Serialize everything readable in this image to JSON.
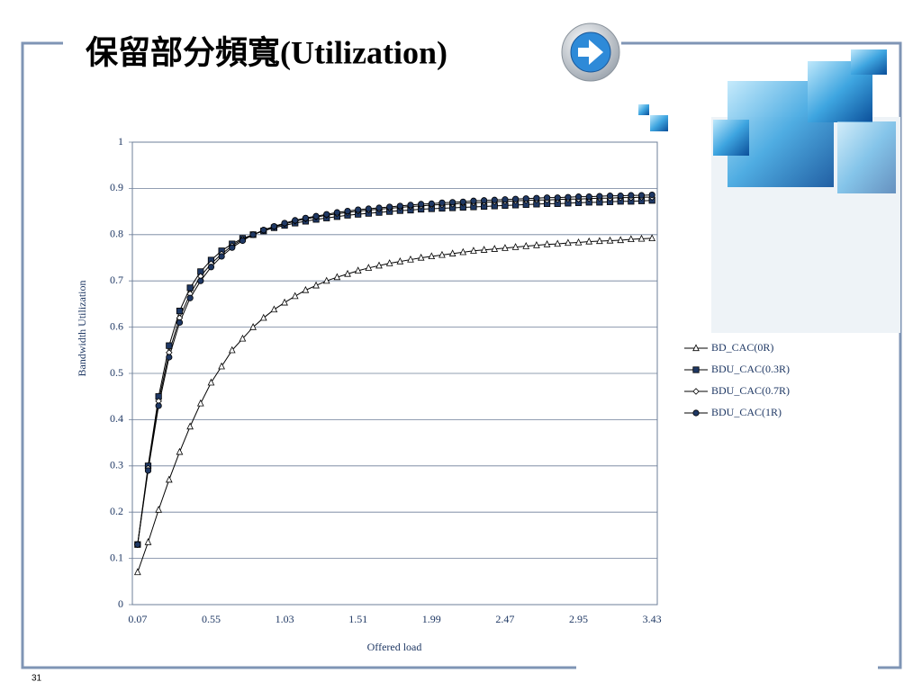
{
  "slide": {
    "title": "保留部分頻寬(Utilization)",
    "page_number": "31"
  },
  "chart_data": {
    "type": "line",
    "x_label": "Offered load",
    "y_label": "Bandwidth Utilization",
    "categories": [
      "0.07",
      null,
      null,
      null,
      null,
      null,
      null,
      "0.55",
      null,
      null,
      null,
      null,
      null,
      null,
      "1.03",
      null,
      null,
      null,
      null,
      null,
      null,
      "1.51",
      null,
      null,
      null,
      null,
      null,
      null,
      "1.99",
      null,
      null,
      null,
      null,
      null,
      null,
      "2.47",
      null,
      null,
      null,
      null,
      null,
      null,
      "2.95",
      null,
      null,
      null,
      null,
      null,
      null,
      "3.43"
    ],
    "ylim": [
      0,
      1
    ],
    "yticks": [
      0,
      0.1,
      0.2,
      0.3,
      0.4,
      0.5,
      0.6,
      0.7,
      0.8,
      0.9,
      1
    ],
    "grid": true,
    "legend": "right",
    "series": [
      {
        "name": "BD_CAC(0R)",
        "color": "#ffffff",
        "marker": "triangle",
        "values": [
          0.07,
          0.135,
          0.205,
          0.27,
          0.33,
          0.385,
          0.435,
          0.48,
          0.515,
          0.55,
          0.575,
          0.6,
          0.62,
          0.638,
          0.653,
          0.667,
          0.68,
          0.69,
          0.7,
          0.708,
          0.715,
          0.722,
          0.728,
          0.733,
          0.738,
          0.742,
          0.746,
          0.75,
          0.753,
          0.756,
          0.759,
          0.762,
          0.765,
          0.767,
          0.769,
          0.771,
          0.773,
          0.775,
          0.777,
          0.779,
          0.78,
          0.782,
          0.783,
          0.785,
          0.786,
          0.787,
          0.788,
          0.79,
          0.791,
          0.792
        ]
      },
      {
        "name": "BDU_CAC(0.3R)",
        "color": "#1f3864",
        "marker": "square",
        "values": [
          0.13,
          0.3,
          0.45,
          0.56,
          0.635,
          0.685,
          0.72,
          0.745,
          0.765,
          0.78,
          0.792,
          0.8,
          0.808,
          0.815,
          0.82,
          0.825,
          0.829,
          0.833,
          0.836,
          0.839,
          0.842,
          0.844,
          0.846,
          0.848,
          0.85,
          0.852,
          0.853,
          0.855,
          0.856,
          0.857,
          0.858,
          0.859,
          0.86,
          0.861,
          0.862,
          0.863,
          0.864,
          0.865,
          0.866,
          0.867,
          0.867,
          0.868,
          0.869,
          0.87,
          0.87,
          0.871,
          0.872,
          0.872,
          0.873,
          0.874
        ]
      },
      {
        "name": "BDU_CAC(0.7R)",
        "color": "#ffffff",
        "marker": "diamond",
        "values": [
          0.13,
          0.295,
          0.44,
          0.545,
          0.62,
          0.672,
          0.71,
          0.737,
          0.758,
          0.776,
          0.79,
          0.8,
          0.809,
          0.817,
          0.823,
          0.829,
          0.834,
          0.838,
          0.842,
          0.845,
          0.848,
          0.851,
          0.853,
          0.855,
          0.857,
          0.859,
          0.861,
          0.862,
          0.864,
          0.865,
          0.866,
          0.868,
          0.869,
          0.87,
          0.871,
          0.872,
          0.873,
          0.874,
          0.875,
          0.875,
          0.876,
          0.877,
          0.877,
          0.878,
          0.879,
          0.879,
          0.88,
          0.88,
          0.881,
          0.881
        ]
      },
      {
        "name": "BDU_CAC(1R)",
        "color": "#1f3864",
        "marker": "circle",
        "values": [
          0.13,
          0.29,
          0.43,
          0.535,
          0.61,
          0.663,
          0.7,
          0.73,
          0.753,
          0.772,
          0.787,
          0.8,
          0.81,
          0.818,
          0.825,
          0.831,
          0.836,
          0.84,
          0.844,
          0.848,
          0.851,
          0.854,
          0.856,
          0.858,
          0.86,
          0.862,
          0.864,
          0.866,
          0.867,
          0.869,
          0.87,
          0.871,
          0.873,
          0.874,
          0.875,
          0.876,
          0.877,
          0.878,
          0.879,
          0.88,
          0.88,
          0.881,
          0.882,
          0.882,
          0.883,
          0.884,
          0.884,
          0.885,
          0.885,
          0.886
        ]
      }
    ]
  }
}
